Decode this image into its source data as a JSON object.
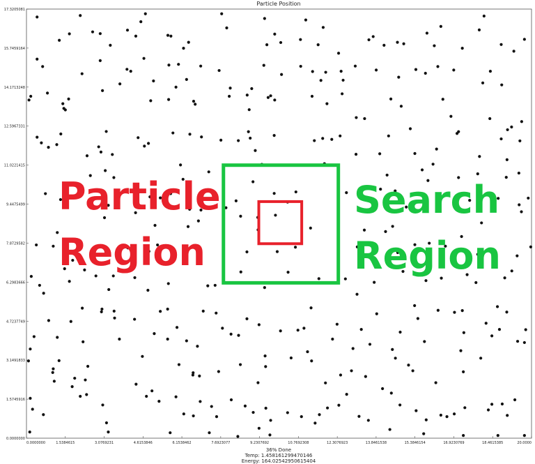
{
  "title": "Particle Position",
  "footer": {
    "progress": "36% Done",
    "temp": "Temp: 1.458161299470146",
    "energy": "Energy: 164.02542950615404"
  },
  "annotations": {
    "particle_region": {
      "line1": "Particle",
      "line2": "Region",
      "color": "#e8212b"
    },
    "search_region": {
      "line1": "Search",
      "line2": "Region",
      "color": "#19c541"
    }
  },
  "chart_data": {
    "type": "scatter",
    "title": "Particle Position",
    "xlim": [
      0,
      20
    ],
    "ylim": [
      0,
      17.3205081
    ],
    "x_ticks": [
      "0.0000000",
      "1.5384615",
      "3.0769231",
      "4.6153846",
      "6.1538462",
      "7.6923077",
      "9.2307692",
      "10.7692308",
      "12.3076923",
      "13.8461538",
      "15.3846154",
      "16.9230769",
      "18.4615385",
      "20.0000"
    ],
    "y_ticks": [
      "0.0000000",
      "1.5745916",
      "3.1491833",
      "4.7237749",
      "6.2983666",
      "7.8729582",
      "9.4475499",
      "11.0221415",
      "12.5967331",
      "14.1713248",
      "15.7459164",
      "17.3205081"
    ],
    "grid": false,
    "point_color": "#111111",
    "search_region": {
      "x": [
        7.8,
        12.35
      ],
      "y": [
        6.27,
        11.02
      ],
      "color": "#19c541"
    },
    "particle_region": {
      "x": [
        9.2,
        10.9
      ],
      "y": [
        7.85,
        9.55
      ],
      "color": "#e8212b"
    },
    "points": [
      [
        0.42,
        17.0
      ],
      [
        1.3,
        16.06
      ],
      [
        1.7,
        16.32
      ],
      [
        2.13,
        17.06
      ],
      [
        2.62,
        16.4
      ],
      [
        2.92,
        16.33
      ],
      [
        3.32,
        15.86
      ],
      [
        4.0,
        16.47
      ],
      [
        4.33,
        16.23
      ],
      [
        4.53,
        16.81
      ],
      [
        4.71,
        17.13
      ],
      [
        5.6,
        16.26
      ],
      [
        5.72,
        16.23
      ],
      [
        6.22,
        15.74
      ],
      [
        6.42,
        15.98
      ],
      [
        7.73,
        17.13
      ],
      [
        7.93,
        16.56
      ],
      [
        9.43,
        16.94
      ],
      [
        9.52,
        15.88
      ],
      [
        9.83,
        16.31
      ],
      [
        10.07,
        15.97
      ],
      [
        10.85,
        16.09
      ],
      [
        11.06,
        16.88
      ],
      [
        11.55,
        15.88
      ],
      [
        11.75,
        16.58
      ],
      [
        12.36,
        15.54
      ],
      [
        13.56,
        16.08
      ],
      [
        13.73,
        16.21
      ],
      [
        14.16,
        15.86
      ],
      [
        14.69,
        15.98
      ],
      [
        14.94,
        15.92
      ],
      [
        15.86,
        16.35
      ],
      [
        16.15,
        15.84
      ],
      [
        16.41,
        16.62
      ],
      [
        17.26,
        15.74
      ],
      [
        17.93,
        16.48
      ],
      [
        18.12,
        17.04
      ],
      [
        18.8,
        15.89
      ],
      [
        19.3,
        15.62
      ],
      [
        19.72,
        16.1
      ],
      [
        0.42,
        15.3
      ],
      [
        0.64,
        15.0
      ],
      [
        2.2,
        14.71
      ],
      [
        2.92,
        15.24
      ],
      [
        3.98,
        14.89
      ],
      [
        4.13,
        14.81
      ],
      [
        4.65,
        15.33
      ],
      [
        5.03,
        14.42
      ],
      [
        5.64,
        15.06
      ],
      [
        6.02,
        15.09
      ],
      [
        6.34,
        14.48
      ],
      [
        6.9,
        15.02
      ],
      [
        7.63,
        14.84
      ],
      [
        8.07,
        14.13
      ],
      [
        8.92,
        14.11
      ],
      [
        9.4,
        15.05
      ],
      [
        10.1,
        14.68
      ],
      [
        10.86,
        15.01
      ],
      [
        11.33,
        14.8
      ],
      [
        11.66,
        14.44
      ],
      [
        11.85,
        14.77
      ],
      [
        12.46,
        14.81
      ],
      [
        12.54,
        14.45
      ],
      [
        13.02,
        15.02
      ],
      [
        13.85,
        14.86
      ],
      [
        14.74,
        14.57
      ],
      [
        15.42,
        14.88
      ],
      [
        15.8,
        14.73
      ],
      [
        16.29,
        15.0
      ],
      [
        16.92,
        14.86
      ],
      [
        18.07,
        14.34
      ],
      [
        18.37,
        14.81
      ],
      [
        18.82,
        14.26
      ],
      [
        0.17,
        13.8
      ],
      [
        0.1,
        13.65
      ],
      [
        0.83,
        13.93
      ],
      [
        1.44,
        13.5
      ],
      [
        1.48,
        13.31
      ],
      [
        1.67,
        13.69
      ],
      [
        1.54,
        13.25
      ],
      [
        3.01,
        14.03
      ],
      [
        3.7,
        14.3
      ],
      [
        4.92,
        13.62
      ],
      [
        5.92,
        14.17
      ],
      [
        5.63,
        13.67
      ],
      [
        6.62,
        13.6
      ],
      [
        6.68,
        13.48
      ],
      [
        8.03,
        13.8
      ],
      [
        8.74,
        13.85
      ],
      [
        8.82,
        13.26
      ],
      [
        9.57,
        13.75
      ],
      [
        9.67,
        13.82
      ],
      [
        9.83,
        13.65
      ],
      [
        11.31,
        13.8
      ],
      [
        11.9,
        13.5
      ],
      [
        12.5,
        13.9
      ],
      [
        13.06,
        12.94
      ],
      [
        13.39,
        12.9
      ],
      [
        14.43,
        13.69
      ],
      [
        14.84,
        13.4
      ],
      [
        16.49,
        13.68
      ],
      [
        16.81,
        12.99
      ],
      [
        18.35,
        12.9
      ],
      [
        19.21,
        12.56
      ],
      [
        19.61,
        12.78
      ],
      [
        0.42,
        12.15
      ],
      [
        0.59,
        11.92
      ],
      [
        0.87,
        11.74
      ],
      [
        1.2,
        11.85
      ],
      [
        1.36,
        12.28
      ],
      [
        2.86,
        11.76
      ],
      [
        2.95,
        11.55
      ],
      [
        3.16,
        12.38
      ],
      [
        4.42,
        12.13
      ],
      [
        4.67,
        11.79
      ],
      [
        4.83,
        11.9
      ],
      [
        5.8,
        12.32
      ],
      [
        6.47,
        12.27
      ],
      [
        6.93,
        12.16
      ],
      [
        7.7,
        12.03
      ],
      [
        8.39,
        12.01
      ],
      [
        8.79,
        12.37
      ],
      [
        8.86,
        12.11
      ],
      [
        9.06,
        11.61
      ],
      [
        9.32,
        11.05
      ],
      [
        9.81,
        12.22
      ],
      [
        11.4,
        12.01
      ],
      [
        11.73,
        12.1
      ],
      [
        12.09,
        12.06
      ],
      [
        12.42,
        12.2
      ],
      [
        13.05,
        11.46
      ],
      [
        13.99,
        11.48
      ],
      [
        14.34,
        12.2
      ],
      [
        15.2,
        12.49
      ],
      [
        15.38,
        11.49
      ],
      [
        16.24,
        11.67
      ],
      [
        17.05,
        12.3
      ],
      [
        17.11,
        12.37
      ],
      [
        17.94,
        11.37
      ],
      [
        18.8,
        12.08
      ],
      [
        19.05,
        12.45
      ],
      [
        19.54,
        12.0
      ],
      [
        2.4,
        11.4
      ],
      [
        3.4,
        11.45
      ],
      [
        6.1,
        11.03
      ],
      [
        11.8,
        11.08
      ],
      [
        16.1,
        11.06
      ],
      [
        19.03,
        11.24
      ],
      [
        2.53,
        10.6
      ],
      [
        3.12,
        10.8
      ],
      [
        3.46,
        10.52
      ],
      [
        6.2,
        10.45
      ],
      [
        7.22,
        10.75
      ],
      [
        14.28,
        10.62
      ],
      [
        15.67,
        10.83
      ],
      [
        15.9,
        10.4
      ],
      [
        17.11,
        10.52
      ],
      [
        17.87,
        10.67
      ],
      [
        19.0,
        10.53
      ],
      [
        19.5,
        10.7
      ],
      [
        0.75,
        9.87
      ],
      [
        1.35,
        9.63
      ],
      [
        1.6,
        10.12
      ],
      [
        3.24,
        9.4
      ],
      [
        4.39,
        9.54
      ],
      [
        4.89,
        9.74
      ],
      [
        5.3,
        9.7
      ],
      [
        5.71,
        9.87
      ],
      [
        6.46,
        9.24
      ],
      [
        6.91,
        9.21
      ],
      [
        7.43,
        9.84
      ],
      [
        7.9,
        9.3
      ],
      [
        8.3,
        9.58
      ],
      [
        8.97,
        10.35
      ],
      [
        9.81,
        9.88
      ],
      [
        10.34,
        9.53
      ],
      [
        10.67,
        9.94
      ],
      [
        12.67,
        9.91
      ],
      [
        14.02,
        10.05
      ],
      [
        14.6,
        9.98
      ],
      [
        15.04,
        9.33
      ],
      [
        16.97,
        9.59
      ],
      [
        17.55,
        9.6
      ],
      [
        17.98,
        9.78
      ],
      [
        18.68,
        9.68
      ],
      [
        19.51,
        9.42
      ],
      [
        19.87,
        9.69
      ],
      [
        19.6,
        9.14
      ],
      [
        3.09,
        8.9
      ],
      [
        4.32,
        9.1
      ],
      [
        5.09,
        8.59
      ],
      [
        6.4,
        8.54
      ],
      [
        6.81,
        8.77
      ],
      [
        8.48,
        8.96
      ],
      [
        9.16,
        8.91
      ],
      [
        9.17,
        8.41
      ],
      [
        9.86,
        9.0
      ],
      [
        11.25,
        8.48
      ],
      [
        13.38,
        8.4
      ],
      [
        14.5,
        8.55
      ],
      [
        14.22,
        8.34
      ],
      [
        17.23,
        8.14
      ],
      [
        18.02,
        8.69
      ],
      [
        1.22,
        8.3
      ],
      [
        1.06,
        7.75
      ],
      [
        0.39,
        7.8
      ],
      [
        1.83,
        7.18
      ],
      [
        4.01,
        7.68
      ],
      [
        4.85,
        7.54
      ],
      [
        5.19,
        7.8
      ],
      [
        5.42,
        7.09
      ],
      [
        6.34,
        7.3
      ],
      [
        8.73,
        7.52
      ],
      [
        9.93,
        7.53
      ],
      [
        10.65,
        7.71
      ],
      [
        13.1,
        7.72
      ],
      [
        13.32,
        7.42
      ],
      [
        14.7,
        7.49
      ],
      [
        15.38,
        7.81
      ],
      [
        15.95,
        7.87
      ],
      [
        16.59,
        7.75
      ],
      [
        17.87,
        7.42
      ],
      [
        19.43,
        7.36
      ],
      [
        19.97,
        7.72
      ],
      [
        0.19,
        6.53
      ],
      [
        0.52,
        6.17
      ],
      [
        0.68,
        5.85
      ],
      [
        1.51,
        6.84
      ],
      [
        1.7,
        6.33
      ],
      [
        2.3,
        6.79
      ],
      [
        2.75,
        6.55
      ],
      [
        3.26,
        6.0
      ],
      [
        3.44,
        6.55
      ],
      [
        4.29,
        6.48
      ],
      [
        4.81,
        5.97
      ],
      [
        5.62,
        6.24
      ],
      [
        7.18,
        6.15
      ],
      [
        7.47,
        6.17
      ],
      [
        8.49,
        6.71
      ],
      [
        9.43,
        6.08
      ],
      [
        10.36,
        6.7
      ],
      [
        11.58,
        6.44
      ],
      [
        12.63,
        6.43
      ],
      [
        13.09,
        5.81
      ],
      [
        13.77,
        6.29
      ],
      [
        14.91,
        6.73
      ],
      [
        15.82,
        6.36
      ],
      [
        16.43,
        6.46
      ],
      [
        17.45,
        6.6
      ],
      [
        17.8,
        6.28
      ],
      [
        18.94,
        6.47
      ],
      [
        19.22,
        6.75
      ],
      [
        2.21,
        5.25
      ],
      [
        2.97,
        5.1
      ],
      [
        2.99,
        5.21
      ],
      [
        3.47,
        5.13
      ],
      [
        5.3,
        5.12
      ],
      [
        5.59,
        5.21
      ],
      [
        7.0,
        5.13
      ],
      [
        7.51,
        5.05
      ],
      [
        11.27,
        5.26
      ],
      [
        13.87,
        5.02
      ],
      [
        15.37,
        5.35
      ],
      [
        16.3,
        5.16
      ],
      [
        16.95,
        5.08
      ],
      [
        17.26,
        5.15
      ],
      [
        18.65,
        5.31
      ],
      [
        19.02,
        5.09
      ],
      [
        0.88,
        4.75
      ],
      [
        1.76,
        4.71
      ],
      [
        3.49,
        4.85
      ],
      [
        4.28,
        4.8
      ],
      [
        5.96,
        4.47
      ],
      [
        8.1,
        4.2
      ],
      [
        8.73,
        4.82
      ],
      [
        9.21,
        4.58
      ],
      [
        10.06,
        4.33
      ],
      [
        10.75,
        4.36
      ],
      [
        10.99,
        4.44
      ],
      [
        12.3,
        4.6
      ],
      [
        13.26,
        4.39
      ],
      [
        14.8,
        4.28
      ],
      [
        15.5,
        4.83
      ],
      [
        17.32,
        4.26
      ],
      [
        18.2,
        4.64
      ],
      [
        18.73,
        4.39
      ],
      [
        19.77,
        4.38
      ],
      [
        0.15,
        3.6
      ],
      [
        0.3,
        4.1
      ],
      [
        1.22,
        4.07
      ],
      [
        2.24,
        3.89
      ],
      [
        3.68,
        4.0
      ],
      [
        4.59,
        3.3
      ],
      [
        5.06,
        4.22
      ],
      [
        5.59,
        4.0
      ],
      [
        6.34,
        3.93
      ],
      [
        6.77,
        3.71
      ],
      [
        7.76,
        4.44
      ],
      [
        8.4,
        4.15
      ],
      [
        9.45,
        3.32
      ],
      [
        10.48,
        3.24
      ],
      [
        11.13,
        3.49
      ],
      [
        12.12,
        4.0
      ],
      [
        12.93,
        3.62
      ],
      [
        13.6,
        3.79
      ],
      [
        14.49,
        3.58
      ],
      [
        15.76,
        3.9
      ],
      [
        17.2,
        3.53
      ],
      [
        18.43,
        4.13
      ],
      [
        19.45,
        3.91
      ],
      [
        19.72,
        3.86
      ],
      [
        0.08,
        3.12
      ],
      [
        1.04,
        2.65
      ],
      [
        1.06,
        2.8
      ],
      [
        1.1,
        2.3
      ],
      [
        1.29,
        3.13
      ],
      [
        1.91,
        2.42
      ],
      [
        2.43,
        2.9
      ],
      [
        4.34,
        2.18
      ],
      [
        6.04,
        2.97
      ],
      [
        6.6,
        2.64
      ],
      [
        6.59,
        2.55
      ],
      [
        6.85,
        2.51
      ],
      [
        7.61,
        2.69
      ],
      [
        8.47,
        2.97
      ],
      [
        9.17,
        2.24
      ],
      [
        9.47,
        2.89
      ],
      [
        11.29,
        3.12
      ],
      [
        11.84,
        2.23
      ],
      [
        12.44,
        2.55
      ],
      [
        12.87,
        2.72
      ],
      [
        13.43,
        2.49
      ],
      [
        14.61,
        3.23
      ],
      [
        15.13,
        2.95
      ],
      [
        15.3,
        2.72
      ],
      [
        16.21,
        2.24
      ],
      [
        17.3,
        2.68
      ],
      [
        17.99,
        3.23
      ],
      [
        0.15,
        1.61
      ],
      [
        0.24,
        1.17
      ],
      [
        0.67,
        0.95
      ],
      [
        1.81,
        2.08
      ],
      [
        2.13,
        1.69
      ],
      [
        2.33,
        2.35
      ],
      [
        2.38,
        1.76
      ],
      [
        3.02,
        1.34
      ],
      [
        3.17,
        0.62
      ],
      [
        4.75,
        1.69
      ],
      [
        4.97,
        1.91
      ],
      [
        5.25,
        1.49
      ],
      [
        5.92,
        1.67
      ],
      [
        6.23,
        0.98
      ],
      [
        6.61,
        0.9
      ],
      [
        6.88,
        1.48
      ],
      [
        7.33,
        1.28
      ],
      [
        7.53,
        0.87
      ],
      [
        8.11,
        1.55
      ],
      [
        8.66,
        1.3
      ],
      [
        8.98,
        1.04
      ],
      [
        9.48,
        1.21
      ],
      [
        9.67,
        0.72
      ],
      [
        10.34,
        1.03
      ],
      [
        10.89,
        0.87
      ],
      [
        11.6,
        0.95
      ],
      [
        11.92,
        1.22
      ],
      [
        12.37,
        1.33
      ],
      [
        12.68,
        1.77
      ],
      [
        13.17,
        0.88
      ],
      [
        13.54,
        0.72
      ],
      [
        14.1,
        2.0
      ],
      [
        14.45,
        1.82
      ],
      [
        14.79,
        1.34
      ],
      [
        15.43,
        1.11
      ],
      [
        15.83,
        0.74
      ],
      [
        16.41,
        0.93
      ],
      [
        16.65,
        0.87
      ],
      [
        16.94,
        0.98
      ],
      [
        17.36,
        1.23
      ],
      [
        18.43,
        1.37
      ],
      [
        18.84,
        1.38
      ],
      [
        19.04,
        0.92
      ],
      [
        19.34,
        1.55
      ],
      [
        0.13,
        0.25
      ],
      [
        3.24,
        0.25
      ],
      [
        5.69,
        0.22
      ],
      [
        7.24,
        0.22
      ],
      [
        8.37,
        0.07
      ],
      [
        9.21,
        0.4
      ],
      [
        9.64,
        0.13
      ],
      [
        14.39,
        0.35
      ],
      [
        15.73,
        0.18
      ],
      [
        17.3,
        0.11
      ],
      [
        18.67,
        0.11
      ],
      [
        19.72,
        0.11
      ],
      [
        18.29,
        1.14
      ],
      [
        11.43,
        0.61
      ]
    ]
  }
}
